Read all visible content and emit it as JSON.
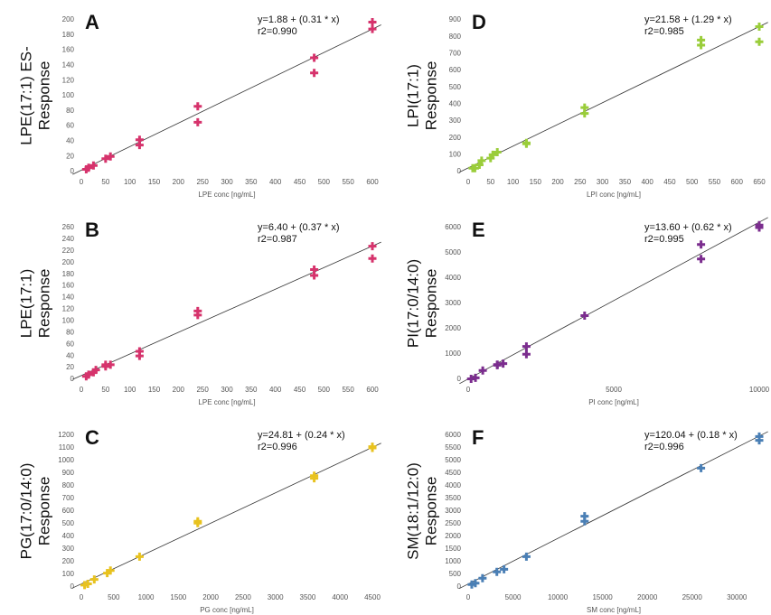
{
  "chart_data": [
    {
      "type": "scatter",
      "panel": "A",
      "ylabel": [
        "LPE(17:1) ES-",
        "Response"
      ],
      "xlabel": "LPE conc [ng/mL]",
      "equation": "y=1.88 + (0.31 * x)",
      "r2": "r2=0.990",
      "color": "#d6336c",
      "x": [
        10,
        15,
        25,
        50,
        60,
        120,
        120,
        240,
        240,
        480,
        480,
        600,
        600
      ],
      "values": [
        3,
        5,
        8,
        17,
        20,
        42,
        35,
        86,
        65,
        150,
        130,
        197,
        188
      ],
      "xlim": [
        0,
        600
      ],
      "xticks": [
        0,
        50,
        100,
        150,
        200,
        250,
        300,
        350,
        400,
        450,
        500,
        550,
        600
      ],
      "ylim": [
        0,
        200
      ],
      "yticks": [
        0,
        20,
        40,
        60,
        80,
        100,
        120,
        140,
        160,
        180,
        200
      ]
    },
    {
      "type": "scatter",
      "panel": "B",
      "ylabel": [
        "LPE(17:1)",
        "Response"
      ],
      "xlabel": "LPE conc [ng/mL]",
      "equation": "y=6.40 + (0.37 * x)",
      "r2": "r2=0.987",
      "color": "#d6336c",
      "x": [
        10,
        15,
        25,
        30,
        50,
        50,
        60,
        120,
        120,
        240,
        240,
        480,
        480,
        600,
        600
      ],
      "values": [
        5,
        8,
        12,
        16,
        22,
        25,
        25,
        48,
        40,
        117,
        110,
        188,
        178,
        228,
        207
      ],
      "xlim": [
        0,
        600
      ],
      "xticks": [
        0,
        50,
        100,
        150,
        200,
        250,
        300,
        350,
        400,
        450,
        500,
        550,
        600
      ],
      "ylim": [
        0,
        260
      ],
      "yticks": [
        0,
        20,
        40,
        60,
        80,
        100,
        120,
        140,
        160,
        180,
        200,
        220,
        240,
        260
      ]
    },
    {
      "type": "scatter",
      "panel": "C",
      "ylabel": [
        "PG(17:0/14:0)",
        "Response"
      ],
      "xlabel": "PG conc [ng/mL]",
      "equation": "y=24.81 + (0.24 * x)",
      "r2": "r2=0.996",
      "color": "#e8c21f",
      "x": [
        50,
        100,
        200,
        400,
        450,
        900,
        1800,
        1800,
        3600,
        3600,
        4500,
        4500
      ],
      "values": [
        15,
        25,
        60,
        110,
        130,
        240,
        520,
        505,
        880,
        860,
        1110,
        1100
      ],
      "xlim": [
        0,
        4500
      ],
      "xticks": [
        0,
        500,
        1000,
        1500,
        2000,
        2500,
        3000,
        3500,
        4000,
        4500
      ],
      "ylim": [
        0,
        1200
      ],
      "yticks": [
        0,
        100,
        200,
        300,
        400,
        500,
        600,
        700,
        800,
        900,
        1000,
        1100,
        1200
      ]
    },
    {
      "type": "scatter",
      "panel": "D",
      "ylabel": [
        "LPI(17:1)",
        "Response"
      ],
      "xlabel": "LPI conc [ng/mL]",
      "equation": "y=21.58 + (1.29 * x)",
      "r2": "r2=0.985",
      "color": "#9acd3a",
      "x": [
        10,
        15,
        25,
        30,
        50,
        55,
        65,
        130,
        130,
        260,
        260,
        520,
        520,
        650,
        650
      ],
      "values": [
        20,
        20,
        40,
        65,
        80,
        100,
        115,
        170,
        165,
        380,
        345,
        780,
        750,
        860,
        770
      ],
      "xlim": [
        0,
        650
      ],
      "xticks": [
        0,
        50,
        100,
        150,
        200,
        250,
        300,
        350,
        400,
        450,
        500,
        550,
        600,
        650
      ],
      "ylim": [
        0,
        900
      ],
      "yticks": [
        0,
        100,
        200,
        300,
        400,
        500,
        600,
        700,
        800,
        900
      ]
    },
    {
      "type": "scatter",
      "panel": "E",
      "ylabel": [
        "PI(17:0/14:0)",
        "Response"
      ],
      "xlabel": "PI conc [ng/mL]",
      "equation": "y=13.60 + (0.62 * x)",
      "r2": "r2=0.995",
      "color": "#7b2d8e",
      "x": [
        100,
        250,
        500,
        1000,
        1000,
        1200,
        2000,
        2000,
        4000,
        8000,
        8000,
        10000,
        10000
      ],
      "values": [
        20,
        60,
        350,
        560,
        580,
        620,
        1300,
        990,
        2520,
        5330,
        4760,
        6100,
        6000
      ],
      "xlim": [
        0,
        10000
      ],
      "xticks": [
        0,
        5000,
        10000
      ],
      "ylim": [
        0,
        6000
      ],
      "yticks": [
        0,
        1000,
        2000,
        3000,
        4000,
        5000,
        6000
      ]
    },
    {
      "type": "scatter",
      "panel": "F",
      "ylabel": [
        "SM(18:1/12:0)",
        "Response"
      ],
      "xlabel": "SM conc [ng/mL]",
      "equation": "y=120.04 + (0.18 * x)",
      "r2": "r2=0.996",
      "color": "#4a7fb5",
      "x": [
        400,
        800,
        1600,
        3200,
        4000,
        6500,
        13000,
        13000,
        26000,
        32500,
        32500
      ],
      "values": [
        100,
        150,
        350,
        600,
        700,
        1200,
        2800,
        2600,
        4700,
        5950,
        5800
      ],
      "xlim": [
        0,
        32500
      ],
      "xticks": [
        0,
        5000,
        10000,
        15000,
        20000,
        25000,
        30000
      ],
      "ylim": [
        0,
        6000
      ],
      "yticks": [
        0,
        500,
        1000,
        1500,
        2000,
        2500,
        3000,
        3500,
        4000,
        4500,
        5000,
        5500,
        6000
      ]
    }
  ]
}
